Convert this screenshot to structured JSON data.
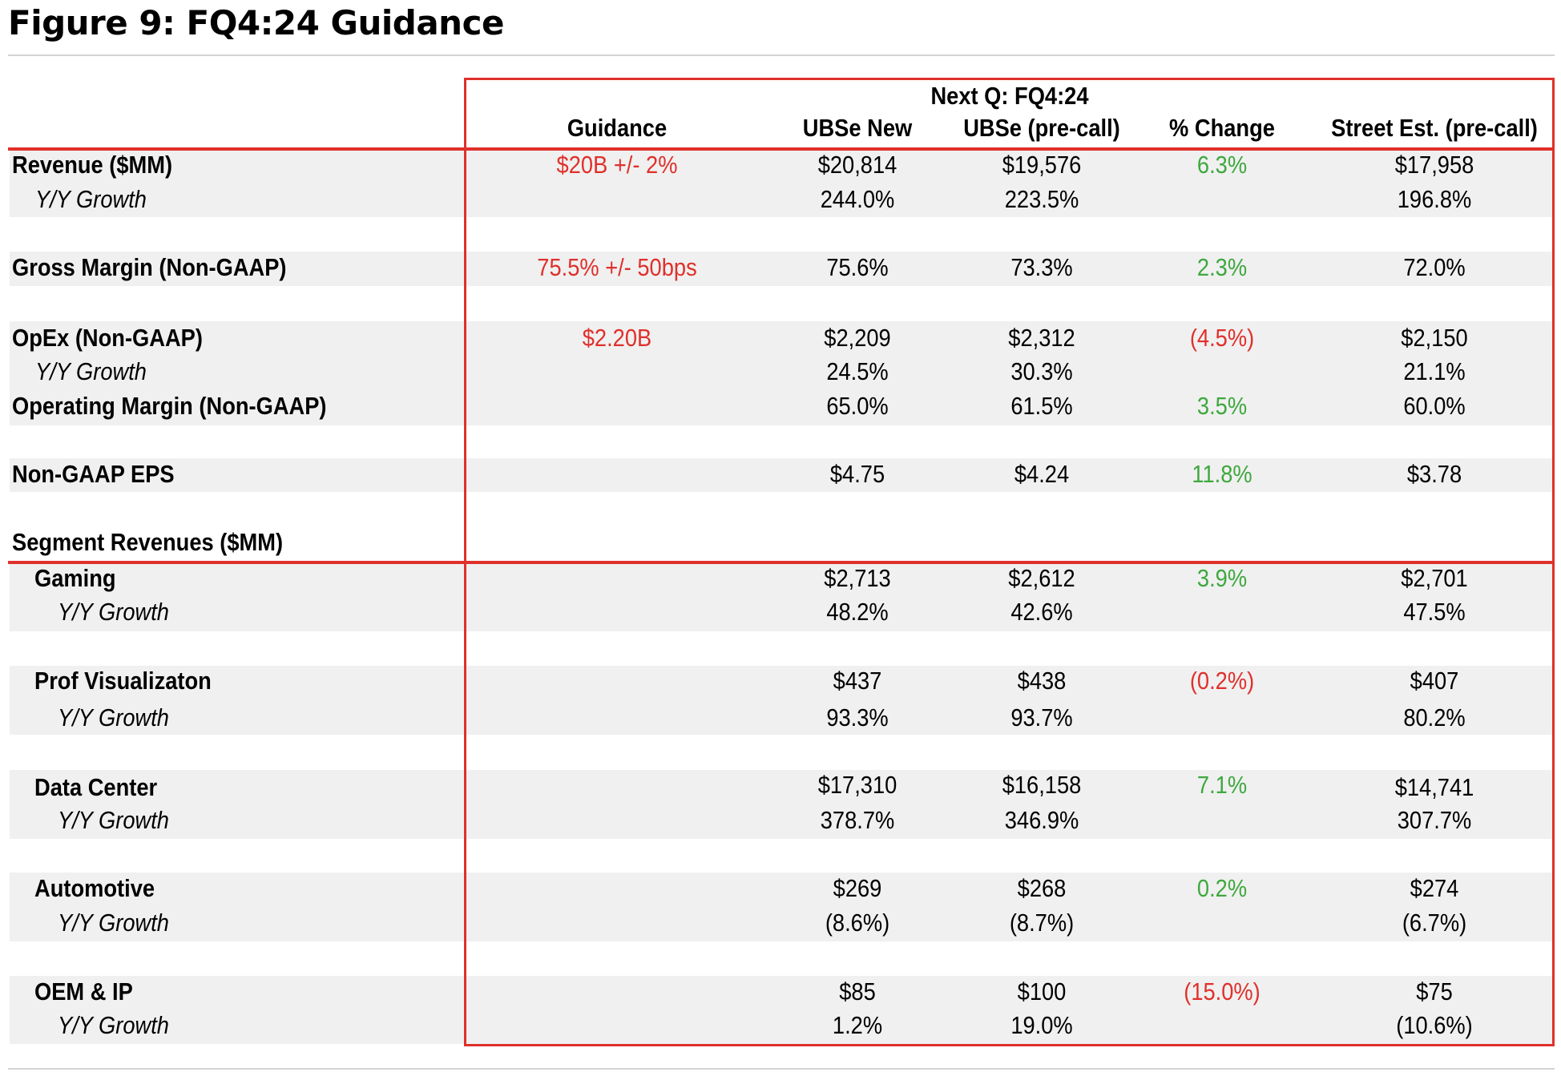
{
  "title": "Figure 9: FQ4:24 Guidance",
  "header": {
    "group": "Next Q: FQ4:24",
    "columns": [
      "Guidance",
      "UBSe New",
      "UBSe (pre-call)",
      "% Change",
      "Street Est. (pre-call)"
    ]
  },
  "colors": {
    "accent": "#e0302b",
    "positive": "#3ea83e",
    "band": "#f0f0f0"
  },
  "rows": [
    {
      "label": "Revenue ($MM)",
      "guidance": "$20B +/- 2%",
      "ubse_new": "$20,814",
      "ubse_pre": "$19,576",
      "change": "6.3%",
      "change_dir": "positive",
      "street": "$17,958"
    },
    {
      "label": "Y/Y Growth",
      "guidance": "",
      "ubse_new": "244.0%",
      "ubse_pre": "223.5%",
      "change": "",
      "street": "196.8%"
    },
    {
      "label": "Gross Margin (Non-GAAP)",
      "guidance": "75.5% +/- 50bps",
      "ubse_new": "75.6%",
      "ubse_pre": "73.3%",
      "change": "2.3%",
      "change_dir": "positive",
      "street": "72.0%"
    },
    {
      "label": "OpEx (Non-GAAP)",
      "guidance": "$2.20B",
      "ubse_new": "$2,209",
      "ubse_pre": "$2,312",
      "change": "(4.5%)",
      "change_dir": "negative",
      "street": "$2,150"
    },
    {
      "label": "Y/Y Growth",
      "guidance": "",
      "ubse_new": "24.5%",
      "ubse_pre": "30.3%",
      "change": "",
      "street": "21.1%"
    },
    {
      "label": "Operating Margin (Non-GAAP)",
      "guidance": "",
      "ubse_new": "65.0%",
      "ubse_pre": "61.5%",
      "change": "3.5%",
      "change_dir": "positive",
      "street": "60.0%"
    },
    {
      "label": "Non-GAAP EPS",
      "guidance": "",
      "ubse_new": "$4.75",
      "ubse_pre": "$4.24",
      "change": "11.8%",
      "change_dir": "positive",
      "street": "$3.78"
    },
    {
      "label": "Segment Revenues ($MM)"
    },
    {
      "label": "Gaming",
      "ubse_new": "$2,713",
      "ubse_pre": "$2,612",
      "change": "3.9%",
      "change_dir": "positive",
      "street": "$2,701"
    },
    {
      "label": "Y/Y Growth",
      "ubse_new": "48.2%",
      "ubse_pre": "42.6%",
      "change": "",
      "street": "47.5%"
    },
    {
      "label": "Prof Visualizaton",
      "ubse_new": "$437",
      "ubse_pre": "$438",
      "change": "(0.2%)",
      "change_dir": "negative",
      "street": "$407"
    },
    {
      "label": "Y/Y Growth",
      "ubse_new": "93.3%",
      "ubse_pre": "93.7%",
      "change": "",
      "street": "80.2%"
    },
    {
      "label": "Data Center",
      "ubse_new": "$17,310",
      "ubse_pre": "$16,158",
      "change": "7.1%",
      "change_dir": "positive",
      "street": "$14,741"
    },
    {
      "label": "Y/Y Growth",
      "ubse_new": "378.7%",
      "ubse_pre": "346.9%",
      "change": "",
      "street": "307.7%"
    },
    {
      "label": "Automotive",
      "ubse_new": "$269",
      "ubse_pre": "$268",
      "change": "0.2%",
      "change_dir": "positive",
      "street": "$274"
    },
    {
      "label": "Y/Y Growth",
      "ubse_new": "(8.6%)",
      "ubse_pre": "(8.7%)",
      "change": "",
      "street": "(6.7%)"
    },
    {
      "label": "OEM & IP",
      "ubse_new": "$85",
      "ubse_pre": "$100",
      "change": "(15.0%)",
      "change_dir": "negative",
      "street": "$75"
    },
    {
      "label": "Y/Y Growth",
      "ubse_new": "1.2%",
      "ubse_pre": "19.0%",
      "change": "",
      "street": "(10.6%)"
    }
  ]
}
